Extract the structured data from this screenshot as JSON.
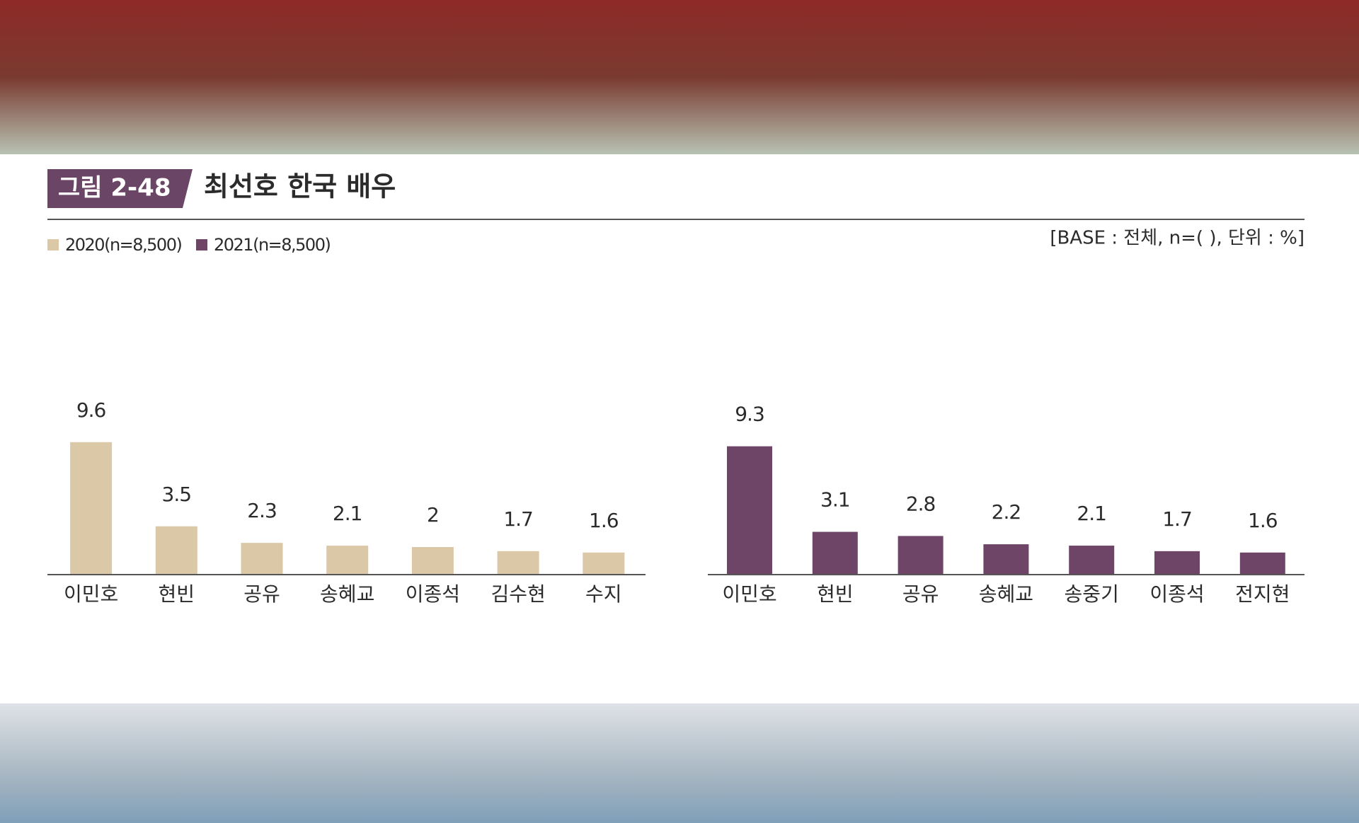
{
  "figure": {
    "label": "그림 2-48",
    "title": "최선호 한국 배우",
    "note": "[BASE : 전체, n=( ), 단위 : %]"
  },
  "chart_data": [
    {
      "type": "bar",
      "categories": [
        "이민호",
        "현빈",
        "공유",
        "송혜교",
        "이종석",
        "김수현",
        "수지"
      ],
      "series": [
        {
          "name": "2020(n=8,500)",
          "color": "#dac8a6",
          "values": [
            9.6,
            3.5,
            2.3,
            2.1,
            2.0,
            1.7,
            1.6
          ]
        }
      ]
    },
    {
      "type": "bar",
      "categories": [
        "이민호",
        "현빈",
        "공유",
        "송혜교",
        "송중기",
        "이종석",
        "전지현"
      ],
      "series": [
        {
          "name": "2021(n=8,500)",
          "color": "#6f4567",
          "values": [
            9.3,
            3.1,
            2.8,
            2.2,
            2.1,
            1.7,
            1.6
          ]
        }
      ]
    }
  ]
}
